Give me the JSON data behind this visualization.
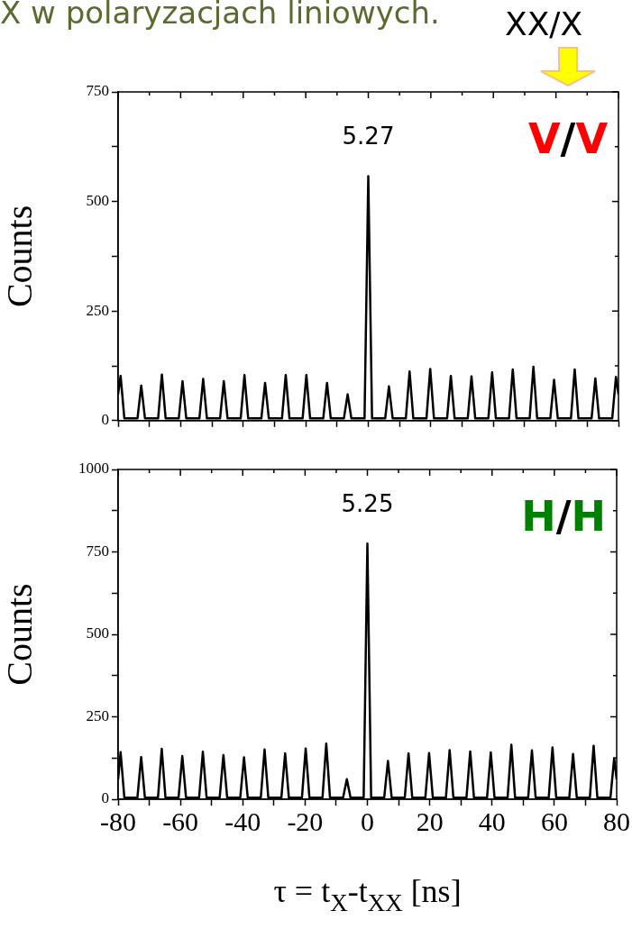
{
  "chart_data": [
    {
      "type": "line",
      "title": "X w polaryzacjach liniowych.",
      "ylabel": "Counts",
      "annotations": [
        "XX/X",
        "5.27",
        "V/V"
      ],
      "tick_labels": "y",
      "legend": false,
      "marker": "none",
      "line_style": "solid",
      "xlim": [
        -80,
        80
      ],
      "xticks": [
        -80,
        {
          "value": -70,
          "label": null
        },
        -60,
        {
          "value": -50,
          "label": null
        },
        -40,
        {
          "value": -30,
          "label": null
        },
        -20,
        {
          "value": -10,
          "label": null
        },
        0,
        {
          "value": 10,
          "label": null
        },
        20,
        {
          "value": 30,
          "label": null
        },
        40,
        {
          "value": 50,
          "label": null
        },
        60,
        {
          "value": 70,
          "label": null
        },
        80
      ],
      "ylim": [
        0,
        750
      ],
      "yticks": [
        0,
        {
          "value": 125,
          "label": null
        },
        250,
        {
          "value": 375,
          "label": null
        },
        500,
        {
          "value": 625,
          "label": null
        },
        750
      ],
      "x": [
        -80,
        -79.2,
        -78,
        -73.8,
        -72.6,
        -71.4,
        -67.2,
        -66,
        -64.8,
        -60.6,
        -59.4,
        -58.2,
        -54,
        -52.8,
        -51.6,
        -47.4,
        -46.2,
        -45,
        -40.8,
        -39.6,
        -38.4,
        -34.2,
        -33,
        -31.8,
        -27.6,
        -26.4,
        -25.2,
        -21,
        -19.8,
        -18.6,
        -14.4,
        -13.2,
        -12,
        -7.8,
        -6.6,
        -5.4,
        -1.2,
        0,
        1.2,
        5.4,
        6.6,
        7.8,
        12,
        13.2,
        14.4,
        18.6,
        19.8,
        21,
        25.2,
        26.4,
        27.6,
        31.8,
        33,
        34.2,
        38.4,
        39.6,
        40.8,
        45,
        46.2,
        47.4,
        51.6,
        52.8,
        54,
        58.2,
        59.4,
        60.6,
        64.8,
        66,
        67.2,
        71.4,
        72.6,
        73.8,
        78,
        79.2,
        80
      ],
      "series": [
        {
          "color": "#000000",
          "values": [
            60,
            102,
            5,
            5,
            80,
            5,
            5,
            105,
            5,
            5,
            90,
            5,
            5,
            95,
            5,
            5,
            90,
            5,
            5,
            104,
            5,
            5,
            86,
            5,
            5,
            104,
            5,
            5,
            104,
            5,
            5,
            86,
            5,
            5,
            60,
            5,
            5,
            558,
            5,
            5,
            78,
            5,
            5,
            112,
            5,
            5,
            118,
            5,
            5,
            102,
            5,
            5,
            101,
            5,
            5,
            110,
            5,
            5,
            117,
            5,
            5,
            123,
            5,
            5,
            93,
            5,
            5,
            117,
            5,
            5,
            96,
            5,
            5,
            100,
            60
          ]
        }
      ]
    },
    {
      "type": "line",
      "xlabel": "τ = t$_{X}$-t$_{XX}$ [ns]",
      "ylabel": "Counts",
      "annotations": [
        "5.25",
        "H/H"
      ],
      "legend": false,
      "marker": "none",
      "line_style": "solid",
      "xlim": [
        -80,
        80
      ],
      "xticks": [
        -80,
        {
          "value": -70,
          "label": null
        },
        -60,
        {
          "value": -50,
          "label": null
        },
        -40,
        {
          "value": -30,
          "label": null
        },
        -20,
        {
          "value": -10,
          "label": null
        },
        0,
        {
          "value": 10,
          "label": null
        },
        20,
        {
          "value": 30,
          "label": null
        },
        40,
        {
          "value": 50,
          "label": null
        },
        60,
        {
          "value": 70,
          "label": null
        },
        80
      ],
      "ylim": [
        0,
        1000
      ],
      "yticks": [
        0,
        {
          "value": 125,
          "label": null
        },
        250,
        {
          "value": 375,
          "label": null
        },
        500,
        {
          "value": 625,
          "label": null
        },
        750,
        {
          "value": 875,
          "label": null
        },
        1000
      ],
      "x": [
        -80,
        -79.2,
        -78,
        -73.8,
        -72.6,
        -71.4,
        -67.2,
        -66,
        -64.8,
        -60.6,
        -59.4,
        -58.2,
        -54,
        -52.8,
        -51.6,
        -47.4,
        -46.2,
        -45,
        -40.8,
        -39.6,
        -38.4,
        -34.2,
        -33,
        -31.8,
        -27.6,
        -26.4,
        -25.2,
        -21,
        -19.8,
        -18.6,
        -14.4,
        -13.2,
        -12,
        -7.8,
        -6.6,
        -5.4,
        -1.2,
        0,
        1.2,
        5.4,
        6.6,
        7.8,
        12,
        13.2,
        14.4,
        18.6,
        19.8,
        21,
        25.2,
        26.4,
        27.6,
        31.8,
        33,
        34.2,
        38.4,
        39.6,
        40.8,
        45,
        46.2,
        47.4,
        51.6,
        52.8,
        54,
        58.2,
        59.4,
        60.6,
        64.8,
        66,
        67.2,
        71.4,
        72.6,
        73.8,
        78,
        79.2,
        80
      ],
      "series": [
        {
          "color": "#000000",
          "values": [
            60,
            143,
            5,
            5,
            128,
            5,
            5,
            153,
            5,
            5,
            131,
            5,
            5,
            144,
            5,
            5,
            134,
            5,
            5,
            127,
            5,
            5,
            151,
            5,
            5,
            139,
            5,
            5,
            154,
            5,
            5,
            169,
            5,
            5,
            61,
            5,
            5,
            775,
            5,
            5,
            116,
            5,
            5,
            139,
            5,
            5,
            140,
            5,
            5,
            149,
            5,
            5,
            145,
            5,
            5,
            142,
            5,
            5,
            165,
            5,
            5,
            148,
            5,
            5,
            157,
            5,
            5,
            137,
            5,
            5,
            162,
            5,
            5,
            124,
            60
          ]
        }
      ]
    }
  ]
}
